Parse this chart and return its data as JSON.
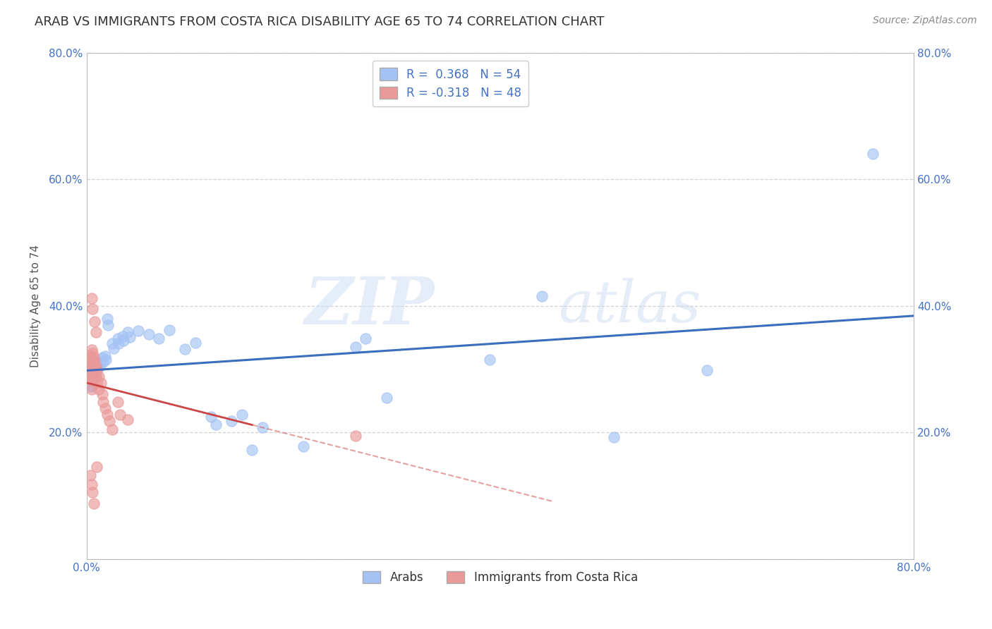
{
  "title": "ARAB VS IMMIGRANTS FROM COSTA RICA DISABILITY AGE 65 TO 74 CORRELATION CHART",
  "source": "Source: ZipAtlas.com",
  "ylabel_label": "Disability Age 65 to 74",
  "x_min": 0.0,
  "x_max": 0.8,
  "y_min": 0.0,
  "y_max": 0.8,
  "arab_color": "#a4c2f4",
  "cr_color": "#ea9999",
  "arab_line_color": "#3c6ebf",
  "cr_line_color": "#cc4444",
  "background_color": "#ffffff",
  "grid_color": "#cccccc",
  "watermark_zip": "ZIP",
  "watermark_atlas": "atlas",
  "title_fontsize": 13,
  "axis_label_fontsize": 11,
  "tick_fontsize": 11,
  "source_fontsize": 10,
  "arab_scatter": [
    [
      0.002,
      0.285
    ],
    [
      0.003,
      0.29
    ],
    [
      0.003,
      0.278
    ],
    [
      0.004,
      0.292
    ],
    [
      0.004,
      0.282
    ],
    [
      0.004,
      0.272
    ],
    [
      0.005,
      0.295
    ],
    [
      0.005,
      0.283
    ],
    [
      0.005,
      0.273
    ],
    [
      0.006,
      0.298
    ],
    [
      0.006,
      0.287
    ],
    [
      0.007,
      0.302
    ],
    [
      0.007,
      0.291
    ],
    [
      0.008,
      0.305
    ],
    [
      0.008,
      0.294
    ],
    [
      0.009,
      0.3
    ],
    [
      0.01,
      0.308
    ],
    [
      0.01,
      0.297
    ],
    [
      0.011,
      0.303
    ],
    [
      0.012,
      0.31
    ],
    [
      0.013,
      0.305
    ],
    [
      0.015,
      0.318
    ],
    [
      0.016,
      0.312
    ],
    [
      0.018,
      0.32
    ],
    [
      0.019,
      0.315
    ],
    [
      0.02,
      0.38
    ],
    [
      0.021,
      0.37
    ],
    [
      0.025,
      0.34
    ],
    [
      0.026,
      0.333
    ],
    [
      0.03,
      0.348
    ],
    [
      0.031,
      0.34
    ],
    [
      0.035,
      0.352
    ],
    [
      0.036,
      0.345
    ],
    [
      0.04,
      0.358
    ],
    [
      0.042,
      0.35
    ],
    [
      0.05,
      0.36
    ],
    [
      0.06,
      0.355
    ],
    [
      0.07,
      0.348
    ],
    [
      0.08,
      0.362
    ],
    [
      0.095,
      0.332
    ],
    [
      0.105,
      0.342
    ],
    [
      0.12,
      0.225
    ],
    [
      0.125,
      0.212
    ],
    [
      0.14,
      0.218
    ],
    [
      0.15,
      0.228
    ],
    [
      0.16,
      0.172
    ],
    [
      0.17,
      0.208
    ],
    [
      0.21,
      0.178
    ],
    [
      0.26,
      0.335
    ],
    [
      0.27,
      0.348
    ],
    [
      0.29,
      0.255
    ],
    [
      0.39,
      0.315
    ],
    [
      0.44,
      0.415
    ],
    [
      0.51,
      0.192
    ],
    [
      0.6,
      0.298
    ],
    [
      0.76,
      0.64
    ]
  ],
  "cr_scatter": [
    [
      0.002,
      0.308
    ],
    [
      0.002,
      0.295
    ],
    [
      0.003,
      0.318
    ],
    [
      0.003,
      0.302
    ],
    [
      0.003,
      0.288
    ],
    [
      0.004,
      0.322
    ],
    [
      0.004,
      0.308
    ],
    [
      0.004,
      0.292
    ],
    [
      0.005,
      0.33
    ],
    [
      0.005,
      0.315
    ],
    [
      0.005,
      0.298
    ],
    [
      0.005,
      0.282
    ],
    [
      0.005,
      0.268
    ],
    [
      0.006,
      0.325
    ],
    [
      0.006,
      0.31
    ],
    [
      0.006,
      0.292
    ],
    [
      0.007,
      0.318
    ],
    [
      0.007,
      0.302
    ],
    [
      0.007,
      0.285
    ],
    [
      0.008,
      0.312
    ],
    [
      0.008,
      0.295
    ],
    [
      0.009,
      0.305
    ],
    [
      0.009,
      0.288
    ],
    [
      0.01,
      0.298
    ],
    [
      0.01,
      0.278
    ],
    [
      0.012,
      0.288
    ],
    [
      0.012,
      0.268
    ],
    [
      0.014,
      0.278
    ],
    [
      0.015,
      0.26
    ],
    [
      0.016,
      0.248
    ],
    [
      0.018,
      0.238
    ],
    [
      0.02,
      0.228
    ],
    [
      0.022,
      0.218
    ],
    [
      0.025,
      0.205
    ],
    [
      0.03,
      0.248
    ],
    [
      0.032,
      0.228
    ],
    [
      0.04,
      0.22
    ],
    [
      0.005,
      0.412
    ],
    [
      0.006,
      0.395
    ],
    [
      0.008,
      0.375
    ],
    [
      0.009,
      0.358
    ],
    [
      0.01,
      0.145
    ],
    [
      0.004,
      0.132
    ],
    [
      0.005,
      0.118
    ],
    [
      0.006,
      0.105
    ],
    [
      0.007,
      0.088
    ],
    [
      0.26,
      0.195
    ]
  ]
}
